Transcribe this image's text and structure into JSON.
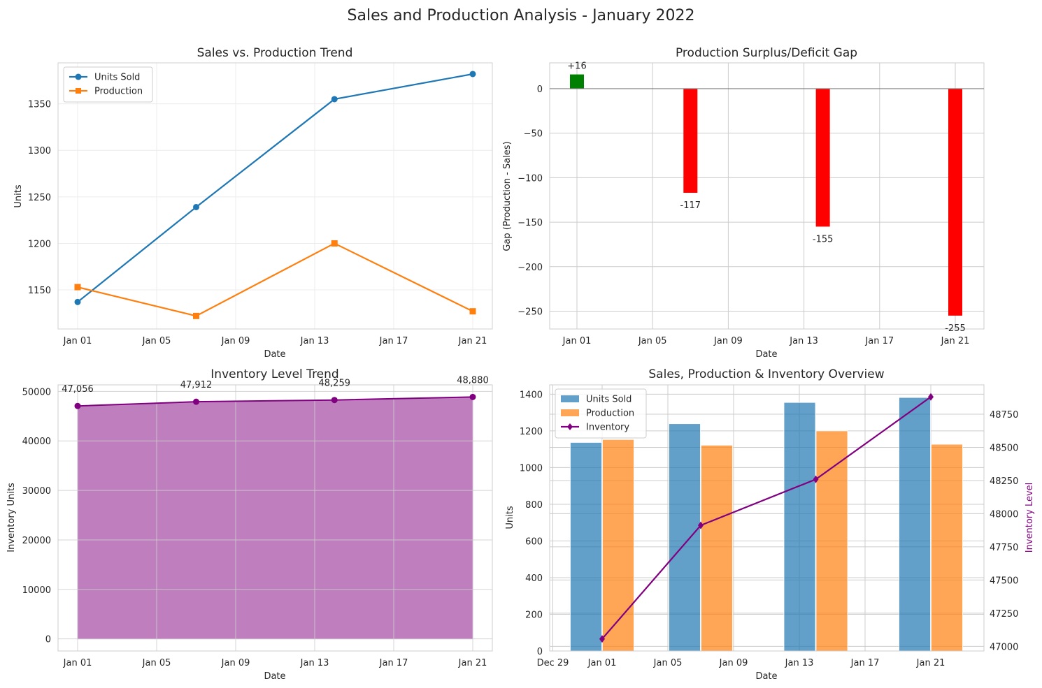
{
  "figure": {
    "title": "Sales and Production Analysis - January 2022"
  },
  "chart_data": [
    {
      "id": "trend",
      "type": "line",
      "title": "Sales vs. Production Trend",
      "xlabel": "Date",
      "ylabel": "Units",
      "x": [
        "2022-01-01",
        "2022-01-07",
        "2022-01-14",
        "2022-01-21"
      ],
      "xticks": [
        "Jan 01",
        "Jan 05",
        "Jan 09",
        "Jan 13",
        "Jan 17",
        "Jan 21"
      ],
      "yticks": [
        1150,
        1200,
        1250,
        1300,
        1350
      ],
      "ylim": [
        1108,
        1394
      ],
      "grid": true,
      "legend": "upper-left",
      "series": [
        {
          "name": "Units Sold",
          "values": [
            1137,
            1239,
            1355,
            1382
          ],
          "color": "#1f77b4",
          "marker": "circle"
        },
        {
          "name": "Production",
          "values": [
            1153,
            1122,
            1200,
            1127
          ],
          "color": "#ff7f0e",
          "marker": "square"
        }
      ]
    },
    {
      "id": "gap",
      "type": "bar",
      "title": "Production Surplus/Deficit Gap",
      "xlabel": "Date",
      "ylabel": "Gap (Production - Sales)",
      "x": [
        "2022-01-01",
        "2022-01-07",
        "2022-01-14",
        "2022-01-21"
      ],
      "xticks": [
        "Jan 01",
        "Jan 05",
        "Jan 09",
        "Jan 13",
        "Jan 17",
        "Jan 21"
      ],
      "values": [
        16,
        -117,
        -155,
        -255
      ],
      "labels": [
        "+16",
        "-117",
        "-155",
        "-255"
      ],
      "yticks": [
        0,
        -50,
        -100,
        -150,
        -200,
        -250
      ],
      "ylim": [
        -270,
        29
      ],
      "positive_color": "#008000",
      "negative_color": "#ff0000",
      "grid": true
    },
    {
      "id": "inventory",
      "type": "area",
      "title": "Inventory Level Trend",
      "xlabel": "Date",
      "ylabel": "Inventory Units",
      "x": [
        "2022-01-01",
        "2022-01-07",
        "2022-01-14",
        "2022-01-21"
      ],
      "xticks": [
        "Jan 01",
        "Jan 05",
        "Jan 09",
        "Jan 13",
        "Jan 17",
        "Jan 21"
      ],
      "values": [
        47056,
        47912,
        48259,
        48880
      ],
      "labels": [
        "47,056",
        "47,912",
        "48,259",
        "48,880"
      ],
      "yticks": [
        0,
        10000,
        20000,
        30000,
        40000,
        50000
      ],
      "ylim": [
        -2444,
        51324
      ],
      "color": "#800080",
      "grid": true
    },
    {
      "id": "overview",
      "type": "bar",
      "title": "Sales, Production & Inventory Overview",
      "xlabel": "Date",
      "ylabel": "Units",
      "y2label": "Inventory Level",
      "x": [
        "2022-01-01",
        "2022-01-07",
        "2022-01-14",
        "2022-01-21"
      ],
      "xticks": [
        "Dec 29",
        "Jan 01",
        "Jan 05",
        "Jan 09",
        "Jan 13",
        "Jan 17",
        "Jan 21"
      ],
      "yticks": [
        0,
        200,
        400,
        600,
        800,
        1000,
        1200,
        1400
      ],
      "ylim": [
        0,
        1451
      ],
      "y2ticks": [
        47000,
        47250,
        47500,
        47750,
        48000,
        48250,
        48500,
        48750
      ],
      "y2lim": [
        46965,
        48971
      ],
      "grid": true,
      "legend": "upper-left",
      "series": [
        {
          "name": "Units Sold",
          "values": [
            1137,
            1239,
            1355,
            1382
          ],
          "color": "#1f77b4",
          "kind": "bar"
        },
        {
          "name": "Production",
          "values": [
            1153,
            1122,
            1200,
            1127
          ],
          "color": "#ff7f0e",
          "kind": "bar"
        },
        {
          "name": "Inventory",
          "values": [
            47056,
            47912,
            48259,
            48880
          ],
          "color": "#800080",
          "kind": "line",
          "axis": "right",
          "marker": "diamond"
        }
      ]
    }
  ]
}
